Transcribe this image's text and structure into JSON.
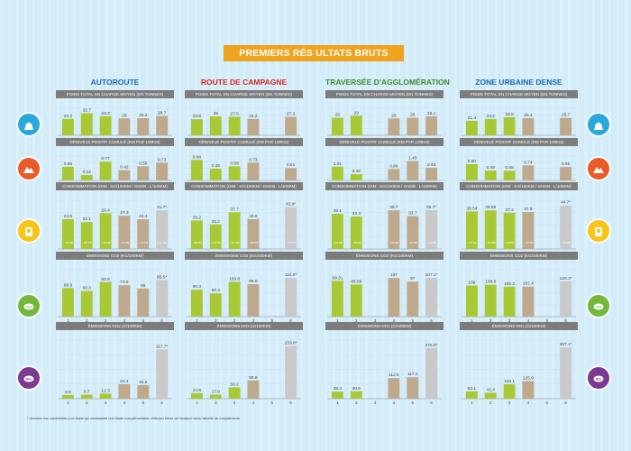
{
  "title": "PREMIERS RÉS ULTATS BRUTS",
  "footnote": "* données non cohérentes a ce stade qui nécessitent une étude complémentaire, réflexion étude de l'analyse dans l'attente de compléments.",
  "colors": {
    "green": "#a8c935",
    "tan": "#bea98d",
    "grey": "#c9c9c9",
    "header": "#7c7c7c",
    "title_bg": "#f0a31e"
  },
  "side_icons": [
    {
      "name": "weight-icon",
      "color": "#2aa8dc"
    },
    {
      "name": "mountain-icon",
      "color": "#ea5b28"
    },
    {
      "name": "fuel-can-icon",
      "color": "#f7c417"
    },
    {
      "name": "co2-cloud-icon",
      "color": "#74b83b"
    },
    {
      "name": "nox-cloud-icon",
      "color": "#7b3a8f"
    }
  ],
  "chart_data": [
    {
      "column": "AUTOROUTE",
      "title_color": "#1a6bb5",
      "panels": [
        {
          "type": "bar",
          "title": "POIDS TOTAL EN CHARGE MOYEN (EN TONNES)",
          "categories": [
            "1",
            "2",
            "3",
            "4",
            "5",
            "6"
          ],
          "values": [
            24.3,
            32.7,
            28.3,
            25,
            25.3,
            28.7
          ],
          "labels": [
            "24.3",
            "32.7",
            "28.3",
            "25",
            "25.3",
            "28.7"
          ],
          "colors": [
            "green",
            "green",
            "green",
            "tan",
            "tan",
            "tan"
          ],
          "ymax": 40,
          "sublabels": [
            "",
            "",
            "",
            "",
            "",
            ""
          ]
        },
        {
          "type": "bar",
          "title": "DÉNIVELÉ POSITIF CUMULÉ (KM PAR 100KM)",
          "categories": [
            "1",
            "2",
            "3",
            "4",
            "5",
            "6"
          ],
          "values": [
            0.56,
            0.22,
            0.77,
            0.42,
            0.58,
            0.73
          ],
          "labels": [
            "0.56",
            "0.22",
            "0.77",
            "0.42",
            "0.58",
            "0.73"
          ],
          "colors": [
            "green",
            "green",
            "green",
            "tan",
            "tan",
            "tan"
          ],
          "ymax": 1.0,
          "sublabels": [
            "",
            "",
            "",
            "",
            "",
            ""
          ]
        },
        {
          "type": "bar",
          "title": "CONSOMMATION (DIM : KG/100KM / GNGB : L/100KM)",
          "categories": [
            "1",
            "2",
            "3",
            "4",
            "5",
            "6"
          ],
          "values": [
            24.5,
            22.1,
            29.4,
            27.3,
            24.4,
            31.7
          ],
          "labels": [
            "24.5",
            "22.1",
            "29.4",
            "27.3",
            "24.4",
            "31.7*"
          ],
          "colors": [
            "green",
            "green",
            "green",
            "tan",
            "tan",
            "grey"
          ],
          "ymax": 40,
          "sublabels": [
            "~ 316 MM",
            "~ 296 MM",
            "~ 363 MM",
            "~ 340 MM",
            "~ 315 MM",
            "~ 421 MM"
          ]
        },
        {
          "type": "bar",
          "title": "ÉMISSIONS CO2 (KG/100KM)",
          "categories": [
            "1",
            "2",
            "3",
            "4",
            "5",
            "6"
          ],
          "values": [
            66.9,
            60.3,
            80.9,
            73.6,
            66,
            85.5
          ],
          "labels": [
            "66.9",
            "60.3",
            "80.9",
            "73.6",
            "66",
            "85.5*"
          ],
          "colors": [
            "green",
            "green",
            "green",
            "tan",
            "tan",
            "grey"
          ],
          "ymax": 110,
          "sublabels": [
            "",
            "",
            "",
            "",
            "",
            ""
          ]
        },
        {
          "type": "bar",
          "title": "ÉMISSIONS NOx (G/100KM)",
          "categories": [
            "1",
            "2",
            "3",
            "4",
            "5",
            "6"
          ],
          "values": [
            8.9,
            9.7,
            12.3,
            34.4,
            32.5,
            117.7
          ],
          "labels": [
            "8.9",
            "9.7",
            "12.3",
            "34.4",
            "32.5",
            "117.7*"
          ],
          "colors": [
            "green",
            "green",
            "green",
            "tan",
            "tan",
            "grey"
          ],
          "ymax": 140,
          "sublabels": [
            "",
            "",
            "",
            "",
            "",
            ""
          ]
        }
      ]
    },
    {
      "column": "ROUTE DE CAMPAGNE",
      "title_color": "#d9261c",
      "panels": [
        {
          "type": "bar",
          "title": "POIDS TOTAL EN CHARGE MOYEN (EN TONNES)",
          "categories": [
            "1",
            "2",
            "3",
            "4",
            "5",
            "6"
          ],
          "values": [
            23.8,
            28,
            27.5,
            24.2,
            0,
            27.3
          ],
          "labels": [
            "23.8",
            "28",
            "27.5",
            "24.2",
            "",
            "27.3"
          ],
          "colors": [
            "green",
            "green",
            "green",
            "tan",
            "tan",
            "tan"
          ],
          "ymax": 40,
          "sublabels": [
            "",
            "",
            "",
            "",
            "",
            ""
          ]
        },
        {
          "type": "bar",
          "title": "DÉNIVELÉ POSITIF CUMULÉ (KM PAR 100KM)",
          "categories": [
            "1",
            "2",
            "3",
            "4",
            "5",
            "6"
          ],
          "values": [
            0.84,
            0.48,
            0.58,
            0.73,
            0,
            0.51
          ],
          "labels": [
            "0.84",
            "0.48",
            "0.58",
            "0.73",
            "",
            "0.51"
          ],
          "colors": [
            "green",
            "green",
            "green",
            "tan",
            "tan",
            "tan"
          ],
          "ymax": 1.0,
          "sublabels": [
            "",
            "",
            "",
            "",
            "",
            ""
          ]
        },
        {
          "type": "bar",
          "title": "CONSOMMATION (DIM : KG/100KM / GNGB : L/100KM)",
          "categories": [
            "1",
            "2",
            "3",
            "4",
            "5",
            "6"
          ],
          "values": [
            29.2,
            25.2,
            37.7,
            30.6,
            0,
            42.9
          ],
          "labels": [
            "29.2",
            "25.2",
            "37.7",
            "30.6",
            "",
            "42.9*"
          ],
          "colors": [
            "green",
            "green",
            "green",
            "tan",
            "tan",
            "grey"
          ],
          "ymax": 50,
          "sublabels": [
            "~ 382 MM",
            "~ 330 MM",
            "~ 511 MM",
            "~ 395 MM",
            "",
            "~ 590 MM"
          ]
        },
        {
          "type": "bar",
          "title": "ÉMISSIONS CO2 (KG/100KM)",
          "categories": [
            "1",
            "2",
            "3",
            "4",
            "5",
            "6"
          ],
          "values": [
            80.3,
            69.4,
            103.8,
            96.6,
            0,
            115.5
          ],
          "labels": [
            "80.3",
            "69.4",
            "103.8",
            "96.6",
            "",
            "115.5*"
          ],
          "colors": [
            "green",
            "green",
            "green",
            "tan",
            "tan",
            "grey"
          ],
          "ymax": 140,
          "sublabels": [
            "",
            "",
            "",
            "",
            "",
            ""
          ]
        },
        {
          "type": "bar",
          "title": "ÉMISSIONS NOx (G/100KM)",
          "categories": [
            "1",
            "2",
            "3",
            "4",
            "5",
            "6"
          ],
          "values": [
            24.8,
            17.8,
            50.2,
            80.8,
            0,
            233.8
          ],
          "labels": [
            "24.8",
            "17.8",
            "50.2",
            "80.8",
            "",
            "233.8*"
          ],
          "colors": [
            "green",
            "green",
            "green",
            "tan",
            "tan",
            "grey"
          ],
          "ymax": 260,
          "sublabels": [
            "",
            "",
            "",
            "",
            "",
            ""
          ]
        }
      ]
    },
    {
      "column": "TRAVERSÉE D'AGGLOMÉRATION",
      "title_color": "#3c8c2c",
      "panels": [
        {
          "type": "bar",
          "title": "POIDS TOTAL EN CHARGE MOYEN (EN TONNES)",
          "categories": [
            "1",
            "2",
            "3",
            "4",
            "5",
            "6"
          ],
          "values": [
            26,
            29,
            0,
            25,
            26,
            28.1
          ],
          "labels": [
            "26",
            "29",
            "",
            "25",
            "26",
            "28.1"
          ],
          "colors": [
            "green",
            "green",
            "green",
            "tan",
            "tan",
            "tan"
          ],
          "ymax": 40,
          "sublabels": [
            "",
            "",
            "",
            "",
            "",
            ""
          ]
        },
        {
          "type": "bar",
          "title": "DÉNIVELÉ POSITIF CUMULÉ (KM PAR 100KM)",
          "categories": [
            "1",
            "2",
            "3",
            "4",
            "5",
            "6"
          ],
          "values": [
            1.01,
            0.46,
            0,
            0.84,
            1.43,
            0.93
          ],
          "labels": [
            "1.01",
            "0.46",
            "",
            "0.84",
            "1.43",
            "0.93"
          ],
          "colors": [
            "green",
            "green",
            "green",
            "tan",
            "tan",
            "tan"
          ],
          "ymax": 1.8,
          "sublabels": [
            "",
            "",
            "",
            "",
            "",
            ""
          ]
        },
        {
          "type": "bar",
          "title": "CONSOMMATION (DIM : KG/100KM / GNGB : L/100KM)",
          "categories": [
            "1",
            "2",
            "3",
            "4",
            "5",
            "6"
          ],
          "values": [
            36.1,
            33.3,
            0,
            39.7,
            33.7,
            39.7
          ],
          "labels": [
            "36.1",
            "33.3",
            "",
            "39.7",
            "33.7",
            "39.7*"
          ],
          "colors": [
            "green",
            "green",
            "green",
            "tan",
            "tan",
            "grey"
          ],
          "ymax": 50,
          "sublabels": [
            "~ 473 MM",
            "~ 436 MM",
            "",
            "~ 520 MM",
            "~ 441 MM",
            "~ 519 MM"
          ]
        },
        {
          "type": "bar",
          "title": "ÉMISSIONS CO2 (KG/100KM)",
          "categories": [
            "1",
            "2",
            "3",
            "4",
            "5",
            "6"
          ],
          "values": [
            99.31,
            88.88,
            0,
            107,
            97,
            107.1
          ],
          "labels": [
            "99.31",
            "88.88",
            "",
            "107",
            "97",
            "107.1*"
          ],
          "colors": [
            "green",
            "green",
            "green",
            "tan",
            "tan",
            "grey"
          ],
          "ymax": 130,
          "sublabels": [
            "",
            "",
            "",
            "",
            "",
            ""
          ]
        },
        {
          "type": "bar",
          "title": "ÉMISSIONS NOx (G/100KM)",
          "categories": [
            "1",
            "2",
            "3",
            "4",
            "5",
            "6"
          ],
          "values": [
            38.4,
            40.5,
            0,
            112.5,
            117,
            276.8
          ],
          "labels": [
            "38.4",
            "40.5",
            "",
            "112.5",
            "117.0",
            "276.8*"
          ],
          "colors": [
            "green",
            "green",
            "green",
            "tan",
            "tan",
            "grey"
          ],
          "ymax": 320,
          "sublabels": [
            "",
            "",
            "",
            "",
            "",
            ""
          ]
        }
      ]
    },
    {
      "column": "ZONE URBAINE DENSE",
      "title_color": "#1a6bb5",
      "panels": [
        {
          "type": "bar",
          "title": "POIDS TOTAL EN CHARGE MOYEN (EN TONNES)",
          "categories": [
            "1",
            "2",
            "3",
            "4",
            "5",
            "6"
          ],
          "values": [
            21.4,
            24.2,
            26.8,
            25.4,
            0,
            25.7
          ],
          "labels": [
            "21.4",
            "24.2",
            "26.8",
            "25.4",
            "",
            "25.7"
          ],
          "colors": [
            "green",
            "green",
            "green",
            "tan",
            "tan",
            "tan"
          ],
          "ymax": 40,
          "sublabels": [
            "",
            "",
            "",
            "",
            "",
            ""
          ]
        },
        {
          "type": "bar",
          "title": "DÉNIVELÉ POSITIF CUMULÉ (KM PAR 100KM)",
          "categories": [
            "1",
            "2",
            "3",
            "4",
            "5",
            "6"
          ],
          "values": [
            0.8,
            0.49,
            0.48,
            0.74,
            0,
            0.66
          ],
          "labels": [
            "0.80",
            "0.49",
            "0.48",
            "0.74",
            "",
            "0.66"
          ],
          "colors": [
            "green",
            "green",
            "green",
            "tan",
            "tan",
            "tan"
          ],
          "ymax": 1.2,
          "sublabels": [
            "",
            "",
            "",
            "",
            "",
            ""
          ]
        },
        {
          "type": "bar",
          "title": "CONSOMMATION (DIM : KG/100KM / GNGB : L/100KM)",
          "categories": [
            "1",
            "2",
            "3",
            "4",
            "5",
            "6"
          ],
          "values": [
            38.54,
            39.59,
            37.2,
            37.9,
            0,
            44.7
          ],
          "labels": [
            "38.54",
            "39.59",
            "37.2",
            "37.9",
            "",
            "44.7*"
          ],
          "colors": [
            "green",
            "green",
            "green",
            "tan",
            "tan",
            "grey"
          ],
          "ymax": 50,
          "sublabels": [
            "~ 491 MM",
            "~ 513 MM",
            "~ 500 MM",
            "~ 493 MM",
            "",
            "~ 615 MM"
          ]
        },
        {
          "type": "bar",
          "title": "ÉMISSIONS CO2 (KG/100KM)",
          "categories": [
            "1",
            "2",
            "3",
            "4",
            "5",
            "6"
          ],
          "values": [
            106,
            108.8,
            102.3,
            102.4,
            0,
            120.3
          ],
          "labels": [
            "106",
            "108.8",
            "102.3",
            "102.4",
            "",
            "120.3*"
          ],
          "colors": [
            "green",
            "green",
            "green",
            "tan",
            "tan",
            "grey"
          ],
          "ymax": 160,
          "sublabels": [
            "",
            "",
            "",
            "",
            "",
            ""
          ]
        },
        {
          "type": "bar",
          "title": "ÉMISSIONS NOx (G/100KM)",
          "categories": [
            "1",
            "2",
            "3",
            "4",
            "5",
            "6"
          ],
          "values": [
            53.1,
            42.4,
            103.1,
            125.9,
            0,
            367.1
          ],
          "labels": [
            "53.1",
            "42.4",
            "103.1",
            "125.9",
            "",
            "367.1*"
          ],
          "colors": [
            "green",
            "green",
            "green",
            "tan",
            "tan",
            "grey"
          ],
          "ymax": 420,
          "sublabels": [
            "",
            "",
            "",
            "",
            "",
            ""
          ]
        }
      ]
    }
  ]
}
